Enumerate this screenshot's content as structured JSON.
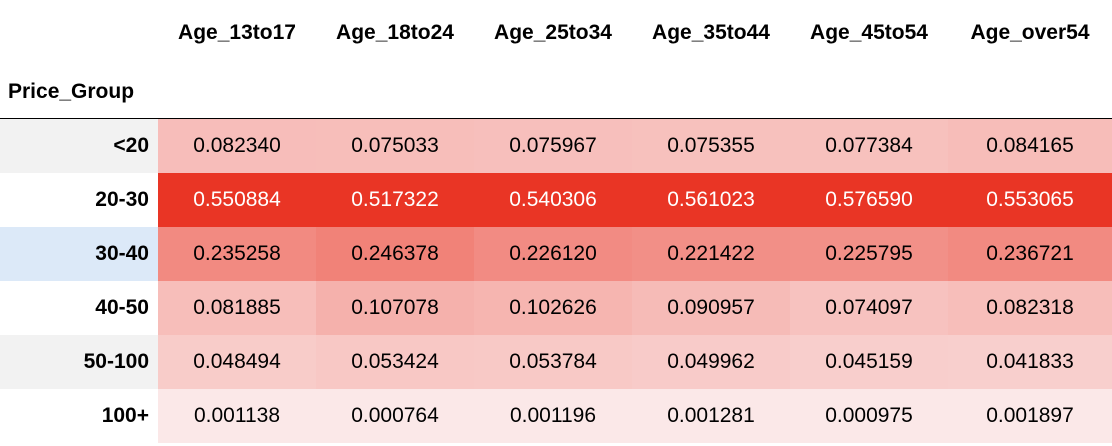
{
  "chart_data": {
    "type": "heatmap",
    "index_name": "Price_Group",
    "columns": [
      "Age_13to17",
      "Age_18to24",
      "Age_25to34",
      "Age_35to44",
      "Age_45to54",
      "Age_over54"
    ],
    "rows": [
      "<20",
      "20-30",
      "30-40",
      "40-50",
      "50-100",
      "100+"
    ],
    "values": [
      [
        "0.082340",
        "0.075033",
        "0.075967",
        "0.075355",
        "0.077384",
        "0.084165"
      ],
      [
        "0.550884",
        "0.517322",
        "0.540306",
        "0.561023",
        "0.576590",
        "0.553065"
      ],
      [
        "0.235258",
        "0.246378",
        "0.226120",
        "0.221422",
        "0.225795",
        "0.236721"
      ],
      [
        "0.081885",
        "0.107078",
        "0.102626",
        "0.090957",
        "0.074097",
        "0.082318"
      ],
      [
        "0.048494",
        "0.053424",
        "0.053784",
        "0.049962",
        "0.045159",
        "0.041833"
      ],
      [
        "0.001138",
        "0.000764",
        "0.001196",
        "0.001281",
        "0.000975",
        "0.001897"
      ]
    ],
    "colormap": "Reds",
    "color_low": "#fbe8e8",
    "color_high": "#e93525",
    "highlighted_row": "30-40"
  }
}
